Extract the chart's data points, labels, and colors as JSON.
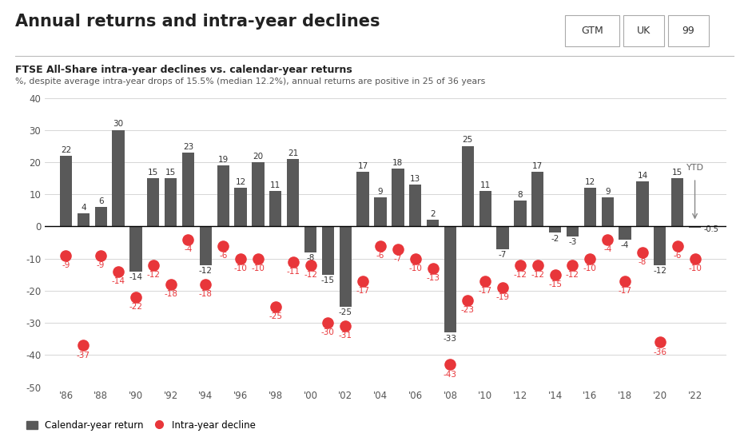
{
  "title": "Annual returns and intra-year declines",
  "subtitle": "FTSE All-Share intra-year declines vs. calendar-year returns",
  "subtitle2": "%, despite average intra-year drops of 15.5% (median 12.2%), annual returns are positive in 25 of 36 years",
  "badge_labels": [
    "GTM",
    "UK",
    "99"
  ],
  "years": [
    1986,
    1987,
    1988,
    1989,
    1990,
    1991,
    1992,
    1993,
    1994,
    1995,
    1996,
    1997,
    1998,
    1999,
    2000,
    2001,
    2002,
    2003,
    2004,
    2005,
    2006,
    2007,
    2008,
    2009,
    2010,
    2011,
    2012,
    2013,
    2014,
    2015,
    2016,
    2017,
    2018,
    2019,
    2020,
    2021,
    2022
  ],
  "calendar_returns": [
    22,
    4,
    6,
    30,
    -14,
    15,
    15,
    23,
    -12,
    19,
    12,
    20,
    11,
    21,
    -8,
    -15,
    -25,
    17,
    9,
    18,
    13,
    2,
    -33,
    25,
    11,
    -7,
    8,
    17,
    -2,
    -3,
    12,
    9,
    -4,
    14,
    -12,
    15,
    -0.5
  ],
  "intra_year_declines": [
    -9,
    -37,
    -9,
    -14,
    -22,
    -12,
    -18,
    -4,
    -18,
    -6,
    -10,
    -10,
    -25,
    -11,
    -12,
    -30,
    -31,
    -17,
    -6,
    -7,
    -10,
    -13,
    -43,
    -23,
    -17,
    -19,
    -12,
    -12,
    -15,
    -12,
    -10,
    -4,
    -17,
    -8,
    -36,
    -6,
    -10
  ],
  "bar_color": "#595959",
  "dot_color": "#e8363a",
  "background_color": "#ffffff",
  "ylim": [
    -50,
    40
  ],
  "yticks": [
    -50,
    -40,
    -30,
    -20,
    -10,
    0,
    10,
    20,
    30,
    40
  ],
  "xtick_labels": [
    "'86",
    "'88",
    "'90",
    "'92",
    "'94",
    "'96",
    "'98",
    "'00",
    "'02",
    "'04",
    "'06",
    "'08",
    "'10",
    "'12",
    "'14",
    "'16",
    "'18",
    "'20",
    "'22"
  ],
  "xtick_positions": [
    1986,
    1988,
    1990,
    1992,
    1994,
    1996,
    1998,
    2000,
    2002,
    2004,
    2006,
    2008,
    2010,
    2012,
    2014,
    2016,
    2018,
    2020,
    2022
  ],
  "bar_label_color": "#333333",
  "dot_label_color": "#e8363a",
  "text_color": "#222222",
  "grid_color": "#d0d0d0",
  "separator_color": "#bbbbbb",
  "ytick_label_color": "#555555",
  "xtick_label_color": "#555555"
}
